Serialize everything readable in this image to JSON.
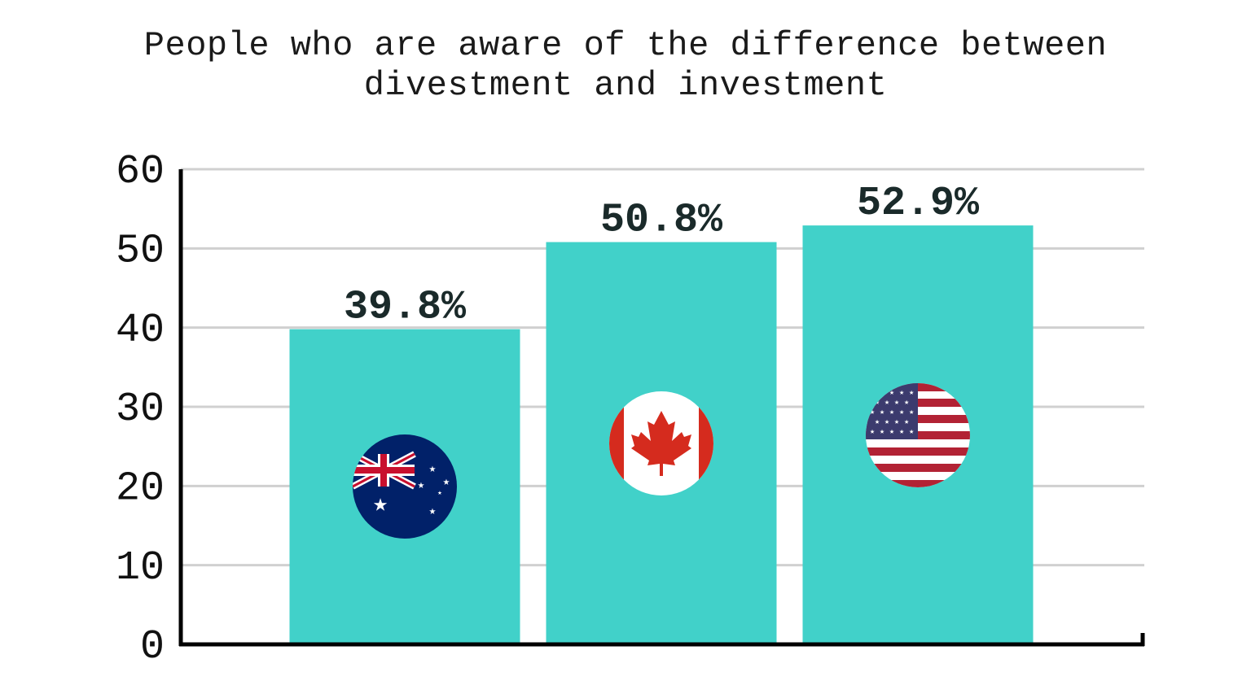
{
  "chart_data": {
    "type": "bar",
    "title": "People who are aware of the difference between divestment and investment",
    "categories": [
      null,
      null,
      null
    ],
    "values": [
      39.8,
      50.8,
      52.9
    ],
    "value_labels": [
      "39.8%",
      "50.8%",
      "52.9%"
    ],
    "color": "#41d1c9",
    "ylim": [
      0,
      60
    ],
    "yticks": [
      0,
      10,
      20,
      30,
      40,
      50,
      60
    ],
    "grid": true
  }
}
